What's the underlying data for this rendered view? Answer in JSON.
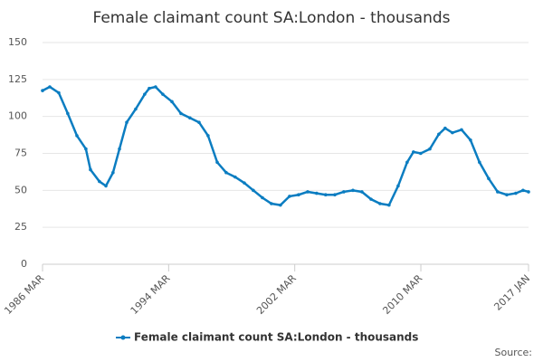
{
  "chart_data": {
    "type": "line",
    "title": "Female claimant count SA:London - thousands",
    "source": "Source:",
    "x": [
      1986.17,
      1986.63,
      1987.2,
      1987.77,
      1988.35,
      1988.92,
      1989.21,
      1989.78,
      1990.19,
      1990.64,
      1991.05,
      1991.51,
      1992.08,
      1992.65,
      1992.94,
      1993.34,
      1993.8,
      1994.38,
      1994.95,
      1995.52,
      1996.1,
      1996.67,
      1997.25,
      1997.82,
      1998.39,
      1998.97,
      1999.54,
      2000.12,
      2000.69,
      2001.26,
      2001.84,
      2002.41,
      2002.99,
      2003.56,
      2004.13,
      2004.71,
      2005.28,
      2005.86,
      2006.43,
      2007.01,
      2007.58,
      2008.15,
      2008.73,
      2009.3,
      2009.7,
      2010.16,
      2010.74,
      2011.31,
      2011.71,
      2012.17,
      2012.75,
      2013.32,
      2013.89,
      2014.47,
      2015.04,
      2015.62,
      2016.19,
      2016.65,
      2017.0
    ],
    "series": [
      {
        "name": "Female claimant count SA:London - thousands",
        "color": "#0b7dc1",
        "values": [
          117.5,
          120,
          116,
          102,
          87,
          78,
          64,
          56,
          53,
          62,
          78,
          96,
          105,
          115,
          119,
          120,
          115,
          110,
          102,
          99,
          96,
          87,
          69,
          62,
          59,
          55,
          50,
          45,
          41,
          40,
          46,
          47,
          49,
          48,
          47,
          47,
          49,
          50,
          49,
          44,
          41,
          40,
          53,
          69,
          76,
          75,
          78,
          88,
          92,
          89,
          91,
          84,
          69,
          58,
          49,
          47,
          48,
          50,
          49
        ]
      }
    ],
    "xlim": [
      1986.17,
      2017.0
    ],
    "xticks": [
      {
        "value": 1986.17,
        "label": "1986 MAR"
      },
      {
        "value": 1994.17,
        "label": "1994 MAR"
      },
      {
        "value": 2002.17,
        "label": "2002 MAR"
      },
      {
        "value": 2010.17,
        "label": "2010 MAR"
      },
      {
        "value": 2017.0,
        "label": "2017 JAN"
      }
    ],
    "ylim": [
      0,
      150
    ],
    "yticks": [
      0,
      25,
      50,
      75,
      100,
      125,
      150
    ],
    "grid": true,
    "legend": "bottom"
  }
}
